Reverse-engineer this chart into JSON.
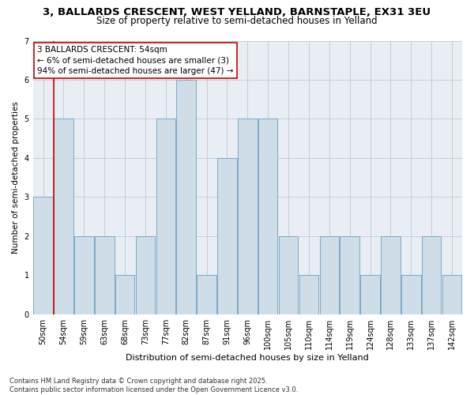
{
  "title1": "3, BALLARDS CRESCENT, WEST YELLAND, BARNSTAPLE, EX31 3EU",
  "title2": "Size of property relative to semi-detached houses in Yelland",
  "xlabel": "Distribution of semi-detached houses by size in Yelland",
  "ylabel": "Number of semi-detached properties",
  "categories": [
    "50sqm",
    "54sqm",
    "59sqm",
    "63sqm",
    "68sqm",
    "73sqm",
    "77sqm",
    "82sqm",
    "87sqm",
    "91sqm",
    "96sqm",
    "100sqm",
    "105sqm",
    "110sqm",
    "114sqm",
    "119sqm",
    "124sqm",
    "128sqm",
    "133sqm",
    "137sqm",
    "142sqm"
  ],
  "values": [
    3,
    5,
    2,
    2,
    1,
    2,
    5,
    6,
    1,
    4,
    5,
    5,
    2,
    1,
    2,
    2,
    1,
    2,
    1,
    2,
    1
  ],
  "bar_color": "#cfdde8",
  "bar_edge_color": "#7aaac8",
  "vline_color": "#cc0000",
  "vline_index": 1,
  "annotation_title": "3 BALLARDS CRESCENT: 54sqm",
  "annotation_line1": "← 6% of semi-detached houses are smaller (3)",
  "annotation_line2": "94% of semi-detached houses are larger (47) →",
  "annotation_box_color": "white",
  "annotation_box_edge": "#cc0000",
  "ylim": [
    0,
    7
  ],
  "yticks": [
    0,
    1,
    2,
    3,
    4,
    5,
    6,
    7
  ],
  "footnote": "Contains HM Land Registry data © Crown copyright and database right 2025.\nContains public sector information licensed under the Open Government Licence v3.0.",
  "title1_fontsize": 9.5,
  "title2_fontsize": 8.5,
  "xlabel_fontsize": 8,
  "ylabel_fontsize": 7.5,
  "tick_fontsize": 7,
  "annotation_fontsize": 7.5,
  "footnote_fontsize": 6,
  "bg_color": "#e8eef4"
}
